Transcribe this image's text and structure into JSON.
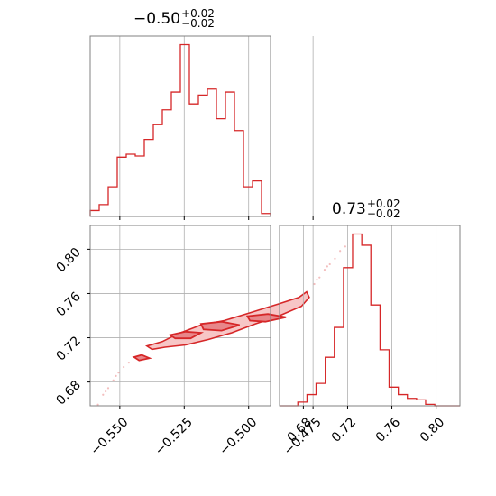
{
  "colors": {
    "series": "#d62728",
    "grid": "#b0b0b0",
    "frame": "#808080",
    "fill_light": "#f7c6c6"
  },
  "titles": {
    "param1": {
      "value": "−0.50",
      "plus": "+0.02",
      "minus": "−0.02"
    },
    "param2": {
      "value": "0.73",
      "plus": "+0.02",
      "minus": "−0.02"
    }
  },
  "chart_data": [
    {
      "type": "histogram",
      "panel": "top-left",
      "grid": true,
      "xlim": [
        -0.5615,
        -0.4915
      ],
      "x_ticks": [
        -0.55,
        -0.525,
        -0.5,
        -0.475
      ],
      "bin_edges": [
        -0.5615,
        -0.558,
        -0.5545,
        -0.551,
        -0.5475,
        -0.544,
        -0.5405,
        -0.537,
        -0.5335,
        -0.53,
        -0.5265,
        -0.523,
        -0.5195,
        -0.516,
        -0.5125,
        -0.509,
        -0.5055,
        -0.502,
        -0.4985,
        -0.495,
        -0.4915
      ],
      "counts": [
        1,
        2,
        5,
        10,
        10.5,
        10.2,
        13,
        15.5,
        18,
        21,
        29,
        19,
        20.5,
        21.5,
        16.5,
        21,
        14.5,
        5,
        6,
        0.5
      ]
    },
    {
      "type": "contour",
      "panel": "bottom-left",
      "grid": true,
      "xlim": [
        -0.5615,
        -0.4915
      ],
      "ylim": [
        0.6585,
        0.8215
      ],
      "x_ticks": [
        -0.55,
        -0.525,
        -0.5,
        -0.475
      ],
      "x_tick_labels": [
        "−0.550",
        "−0.525",
        "−0.500",
        "−0.475"
      ],
      "y_ticks": [
        0.68,
        0.72,
        0.76,
        0.8
      ],
      "y_tick_labels": [
        "0.68",
        "0.72",
        "0.76",
        "0.80"
      ],
      "outer_contour": [
        [
          -0.5395,
          0.7125
        ],
        [
          -0.5335,
          0.7165
        ],
        [
          -0.5275,
          0.7235
        ],
        [
          -0.5185,
          0.7315
        ],
        [
          -0.5095,
          0.7355
        ],
        [
          -0.4995,
          0.7425
        ],
        [
          -0.4885,
          0.7505
        ],
        [
          -0.4805,
          0.7565
        ],
        [
          -0.4775,
          0.7615
        ],
        [
          -0.4765,
          0.7565
        ],
        [
          -0.4795,
          0.7485
        ],
        [
          -0.4885,
          0.7395
        ],
        [
          -0.4975,
          0.7325
        ],
        [
          -0.5065,
          0.7245
        ],
        [
          -0.5155,
          0.7185
        ],
        [
          -0.5245,
          0.7135
        ],
        [
          -0.5325,
          0.7115
        ],
        [
          -0.5375,
          0.7095
        ]
      ],
      "inner_contours": [
        [
          [
            -0.5305,
            0.7225
          ],
          [
            -0.5245,
            0.7255
          ],
          [
            -0.5185,
            0.7245
          ],
          [
            -0.5225,
            0.7195
          ],
          [
            -0.5285,
            0.7195
          ]
        ],
        [
          [
            -0.5185,
            0.7325
          ],
          [
            -0.5105,
            0.7345
          ],
          [
            -0.5035,
            0.7315
          ],
          [
            -0.5105,
            0.7265
          ],
          [
            -0.5175,
            0.7275
          ]
        ],
        [
          [
            -0.5005,
            0.7395
          ],
          [
            -0.4925,
            0.7415
          ],
          [
            -0.4855,
            0.7385
          ],
          [
            -0.4935,
            0.7345
          ],
          [
            -0.4995,
            0.7355
          ]
        ],
        [
          [
            -0.5445,
            0.7025
          ],
          [
            -0.5415,
            0.7045
          ],
          [
            -0.5385,
            0.7015
          ],
          [
            -0.5425,
            0.6995
          ]
        ]
      ],
      "scatter_points": [
        [
          -0.5585,
          0.6595
        ],
        [
          -0.5565,
          0.6685
        ],
        [
          -0.5545,
          0.6745
        ],
        [
          -0.5525,
          0.6815
        ],
        [
          -0.5505,
          0.6885
        ],
        [
          -0.5485,
          0.6935
        ],
        [
          -0.5465,
          0.6975
        ],
        [
          -0.5555,
          0.6715
        ],
        [
          -0.5515,
          0.6855
        ],
        [
          -0.4745,
          0.7685
        ],
        [
          -0.4725,
          0.7745
        ],
        [
          -0.4705,
          0.7815
        ],
        [
          -0.4685,
          0.7865
        ],
        [
          -0.4665,
          0.7915
        ],
        [
          -0.4645,
          0.7985
        ],
        [
          -0.4625,
          0.8025
        ],
        [
          -0.4735,
          0.7725
        ],
        [
          -0.4695,
          0.7845
        ]
      ]
    },
    {
      "type": "histogram",
      "panel": "bottom-right",
      "grid": true,
      "xlim": [
        0.6585,
        0.8215
      ],
      "x_ticks": [
        0.68,
        0.72,
        0.76,
        0.8
      ],
      "x_tick_labels": [
        "0.68",
        "0.72",
        "0.76",
        "0.80"
      ],
      "bin_edges": [
        0.6585,
        0.6668,
        0.675,
        0.6833,
        0.6915,
        0.6998,
        0.708,
        0.7163,
        0.7245,
        0.7328,
        0.741,
        0.7493,
        0.7575,
        0.7658,
        0.774,
        0.7823,
        0.7905,
        0.7988,
        0.807,
        0.8215
      ],
      "counts": [
        0,
        0,
        0.5,
        1.5,
        3,
        6.5,
        10.5,
        18.5,
        23,
        21.5,
        13.5,
        7.5,
        2.5,
        1.5,
        1,
        0.8,
        0.2,
        0,
        0
      ]
    }
  ]
}
